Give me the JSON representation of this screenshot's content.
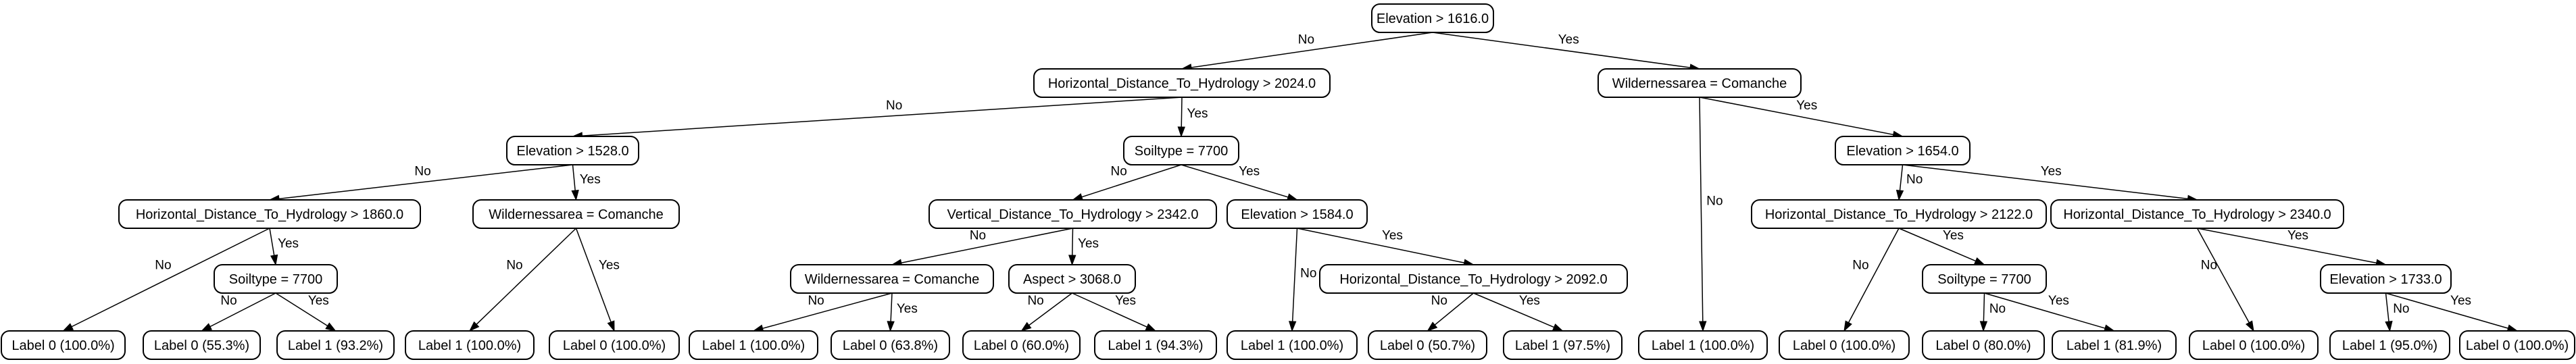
{
  "tree": {
    "nodes": [
      {
        "id": "n0",
        "label": "Elevation > 1616.0"
      },
      {
        "id": "n1",
        "label": "Horizontal_Distance_To_Hydrology > 2024.0"
      },
      {
        "id": "n2",
        "label": "Wildernessarea = Comanche"
      },
      {
        "id": "n3",
        "label": "Elevation > 1528.0"
      },
      {
        "id": "n4",
        "label": "Soiltype = 7700"
      },
      {
        "id": "n5",
        "label": "Horizontal_Distance_To_Hydrology > 1860.0"
      },
      {
        "id": "n6",
        "label": "Wildernessarea = Comanche"
      },
      {
        "id": "n7",
        "label": "Soiltype = 7700"
      },
      {
        "id": "n8",
        "label": "Vertical_Distance_To_Hydrology > 2342.0"
      },
      {
        "id": "n9",
        "label": "Elevation > 1584.0"
      },
      {
        "id": "n10",
        "label": "Wildernessarea = Comanche"
      },
      {
        "id": "n11",
        "label": "Aspect > 3068.0"
      },
      {
        "id": "n12",
        "label": "Horizontal_Distance_To_Hydrology > 2092.0"
      },
      {
        "id": "n13",
        "label": "Elevation > 1654.0"
      },
      {
        "id": "n14",
        "label": "Horizontal_Distance_To_Hydrology > 2122.0"
      },
      {
        "id": "n15",
        "label": "Horizontal_Distance_To_Hydrology > 2340.0"
      },
      {
        "id": "n16",
        "label": "Soiltype = 7700"
      },
      {
        "id": "n17",
        "label": "Elevation > 1733.0"
      },
      {
        "id": "l0",
        "label": "Label 0 (100.0%)"
      },
      {
        "id": "l1",
        "label": "Label 0 (55.3%)"
      },
      {
        "id": "l2",
        "label": "Label 1 (93.2%)"
      },
      {
        "id": "l3",
        "label": "Label 1 (100.0%)"
      },
      {
        "id": "l4",
        "label": "Label 0 (100.0%)"
      },
      {
        "id": "l5",
        "label": "Label 1 (100.0%)"
      },
      {
        "id": "l6",
        "label": "Label 0 (63.8%)"
      },
      {
        "id": "l7",
        "label": "Label 0 (60.0%)"
      },
      {
        "id": "l8",
        "label": "Label 1 (94.3%)"
      },
      {
        "id": "l9",
        "label": "Label 1 (100.0%)"
      },
      {
        "id": "l10",
        "label": "Label 0 (50.7%)"
      },
      {
        "id": "l11",
        "label": "Label 1 (97.5%)"
      },
      {
        "id": "l12",
        "label": "Label 1 (100.0%)"
      },
      {
        "id": "l13",
        "label": "Label 0 (100.0%)"
      },
      {
        "id": "l14",
        "label": "Label 0 (80.0%)"
      },
      {
        "id": "l15",
        "label": "Label 1 (81.9%)"
      },
      {
        "id": "l16",
        "label": "Label 0 (100.0%)"
      },
      {
        "id": "l17",
        "label": "Label 1 (95.0%)"
      },
      {
        "id": "l18",
        "label": "Label 0 (100.0%)"
      }
    ],
    "edges": [
      {
        "from": "n0",
        "to": "n1",
        "label": "No"
      },
      {
        "from": "n0",
        "to": "n2",
        "label": "Yes"
      },
      {
        "from": "n1",
        "to": "n3",
        "label": "No"
      },
      {
        "from": "n1",
        "to": "n4",
        "label": "Yes"
      },
      {
        "from": "n3",
        "to": "n5",
        "label": "No"
      },
      {
        "from": "n3",
        "to": "n6",
        "label": "Yes"
      },
      {
        "from": "n5",
        "to": "l0",
        "label": "No"
      },
      {
        "from": "n5",
        "to": "n7",
        "label": "Yes"
      },
      {
        "from": "n7",
        "to": "l1",
        "label": "No"
      },
      {
        "from": "n7",
        "to": "l2",
        "label": "Yes"
      },
      {
        "from": "n6",
        "to": "l3",
        "label": "No"
      },
      {
        "from": "n6",
        "to": "l4",
        "label": "Yes"
      },
      {
        "from": "n4",
        "to": "n8",
        "label": "No"
      },
      {
        "from": "n4",
        "to": "n9",
        "label": "Yes"
      },
      {
        "from": "n8",
        "to": "n10",
        "label": "No"
      },
      {
        "from": "n8",
        "to": "n11",
        "label": "Yes"
      },
      {
        "from": "n10",
        "to": "l5",
        "label": "No"
      },
      {
        "from": "n10",
        "to": "l6",
        "label": "Yes"
      },
      {
        "from": "n11",
        "to": "l7",
        "label": "No"
      },
      {
        "from": "n11",
        "to": "l8",
        "label": "Yes"
      },
      {
        "from": "n9",
        "to": "l9",
        "label": "No"
      },
      {
        "from": "n9",
        "to": "n12",
        "label": "Yes"
      },
      {
        "from": "n12",
        "to": "l10",
        "label": "No"
      },
      {
        "from": "n12",
        "to": "l11",
        "label": "Yes"
      },
      {
        "from": "n2",
        "to": "l12",
        "label": "No"
      },
      {
        "from": "n2",
        "to": "n13",
        "label": "Yes"
      },
      {
        "from": "n13",
        "to": "n14",
        "label": "No"
      },
      {
        "from": "n13",
        "to": "n15",
        "label": "Yes"
      },
      {
        "from": "n14",
        "to": "l13",
        "label": "No"
      },
      {
        "from": "n14",
        "to": "n16",
        "label": "Yes"
      },
      {
        "from": "n16",
        "to": "l14",
        "label": "No"
      },
      {
        "from": "n16",
        "to": "l15",
        "label": "Yes"
      },
      {
        "from": "n15",
        "to": "l16",
        "label": "No"
      },
      {
        "from": "n15",
        "to": "n17",
        "label": "Yes"
      },
      {
        "from": "n17",
        "to": "l17",
        "label": "No"
      },
      {
        "from": "n17",
        "to": "l18",
        "label": "Yes"
      }
    ]
  }
}
